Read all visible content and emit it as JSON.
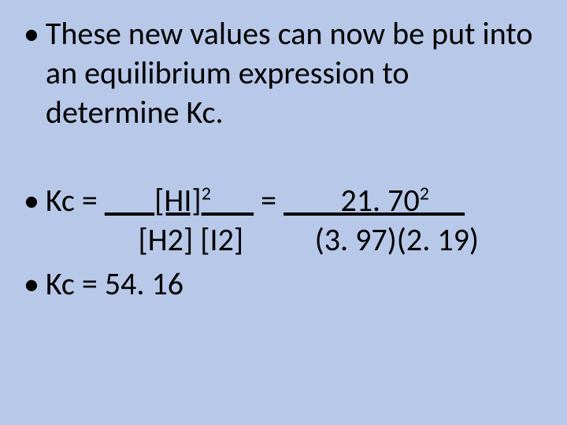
{
  "background_color": "#b8c8e8",
  "text_color": "#000000",
  "font_size_pt": 30,
  "bullets": {
    "b1": "These new values can now be put into an equilibrium expression to determine Kc.",
    "b3": "Kc = 54. 16"
  },
  "equation": {
    "kc_label": "Kc = ",
    "numerator_prefix": "       ",
    "numerator_base": "[HI]",
    "numerator_exp": "2",
    "numerator_suffix": "      ",
    "equals": " = ",
    "right_prefix": "        ",
    "right_base": "21. 70",
    "right_exp": "2",
    "right_suffix": "     ",
    "denominator_left": "[H2] [I2]",
    "denominator_right": "(3. 97)(2. 19)"
  }
}
